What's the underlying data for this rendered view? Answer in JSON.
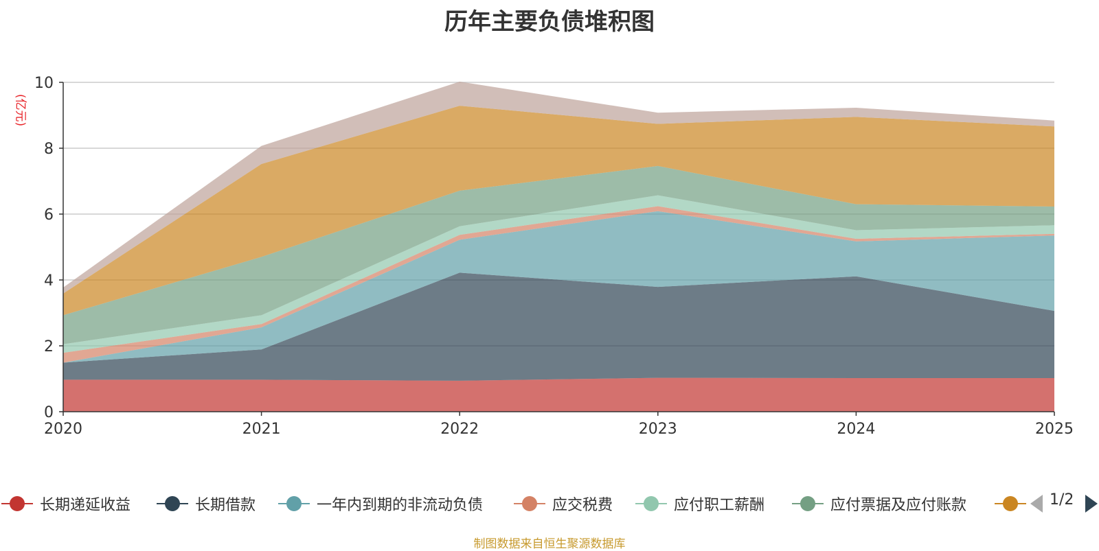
{
  "unit_label": "(亿元)",
  "legend_pager": "1/2",
  "source_note": "制图数据来自恒生聚源数据库",
  "chart_data": {
    "type": "area",
    "stacked": true,
    "title": "历年主要负债堆积图",
    "ylabel": "(亿元)",
    "ylim": [
      0,
      10
    ],
    "yticks": [
      0,
      2,
      4,
      6,
      8,
      10
    ],
    "grid": true,
    "x": [
      "2020",
      "2021",
      "2022",
      "2023",
      "2024",
      "2025"
    ],
    "series": [
      {
        "name": "长期递延收益",
        "color": "#c23531",
        "values": [
          0.97,
          0.97,
          0.94,
          1.03,
          1.02,
          1.02
        ]
      },
      {
        "name": "长期借款",
        "color": "#2f4554",
        "values": [
          0.52,
          0.92,
          3.28,
          2.76,
          3.09,
          2.04
        ]
      },
      {
        "name": "一年内到期的非流动负债",
        "color": "#61a0a8",
        "values": [
          0.0,
          0.67,
          1.0,
          2.3,
          1.06,
          2.29
        ]
      },
      {
        "name": "应交税费",
        "color": "#d48265",
        "values": [
          0.3,
          0.1,
          0.15,
          0.15,
          0.08,
          0.05
        ]
      },
      {
        "name": "应付职工薪酬",
        "color": "#91c7ae",
        "values": [
          0.26,
          0.27,
          0.26,
          0.33,
          0.26,
          0.26
        ]
      },
      {
        "name": "应付票据及应付账款",
        "color": "#749f83",
        "values": [
          0.88,
          1.77,
          1.08,
          0.89,
          0.79,
          0.57
        ]
      },
      {
        "name": "",
        "color": "#ca8622",
        "values": [
          0.66,
          2.82,
          2.58,
          1.28,
          2.65,
          2.43
        ]
      },
      {
        "name": "",
        "color": "#bda29a",
        "values": [
          0.18,
          0.55,
          0.73,
          0.34,
          0.28,
          0.18
        ]
      }
    ],
    "legend_visible_count": 7
  }
}
